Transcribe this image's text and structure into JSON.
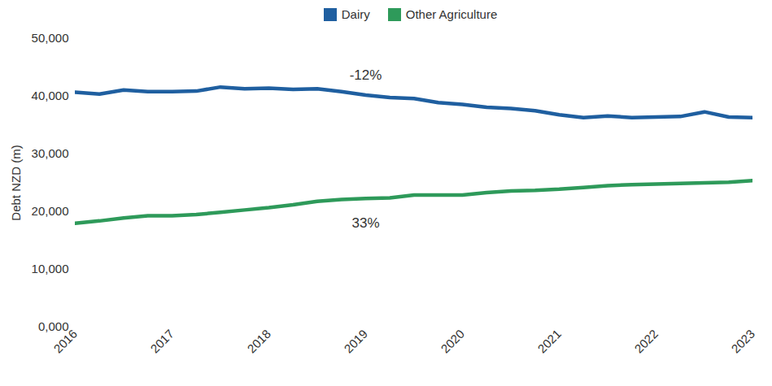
{
  "chart_data": {
    "type": "line",
    "y_label": "Debt NZD (m)",
    "legend": "top",
    "x": [
      2016,
      2016.25,
      2016.5,
      2016.75,
      2017,
      2017.25,
      2017.5,
      2017.75,
      2018,
      2018.25,
      2018.5,
      2018.75,
      2019,
      2019.25,
      2019.5,
      2019.75,
      2020,
      2020.25,
      2020.5,
      2020.75,
      2021,
      2021.25,
      2021.5,
      2021.75,
      2022,
      2022.25,
      2022.5,
      2022.75,
      2023
    ],
    "series": [
      {
        "name": "Dairy",
        "color": "#1f5fa0",
        "values": [
          40700,
          40400,
          41100,
          40800,
          40800,
          40900,
          41600,
          41300,
          41400,
          41200,
          41300,
          40800,
          40200,
          39800,
          39600,
          38900,
          38600,
          38100,
          37900,
          37500,
          36800,
          36300,
          36600,
          36300,
          36400,
          36500,
          37300,
          36400,
          36300
        ]
      },
      {
        "name": "Other Agriculture",
        "color": "#2e9a5a",
        "values": [
          18000,
          18400,
          18900,
          19300,
          19300,
          19500,
          19900,
          20300,
          20700,
          21200,
          21800,
          22100,
          22300,
          22400,
          22900,
          22900,
          22900,
          23300,
          23600,
          23700,
          23900,
          24200,
          24500,
          24700,
          24800,
          24900,
          25000,
          25100,
          25400
        ]
      }
    ],
    "annotations": [
      {
        "text": "-12%",
        "x": 2019,
        "y": 43600
      },
      {
        "text": "33%",
        "x": 2019,
        "y": 18000
      }
    ],
    "xlim": [
      2016,
      2023
    ],
    "xticks": [
      2016,
      2017,
      2018,
      2019,
      2020,
      2021,
      2022,
      2023
    ],
    "ylim": [
      0,
      50000
    ],
    "yticks": [
      {
        "value": 0,
        "label": "0,000"
      },
      {
        "value": 10000,
        "label": "10,000"
      },
      {
        "value": 20000,
        "label": "20,000"
      },
      {
        "value": 30000,
        "label": "30,000"
      },
      {
        "value": 40000,
        "label": "40,000"
      },
      {
        "value": 50000,
        "label": "50,000"
      }
    ]
  }
}
